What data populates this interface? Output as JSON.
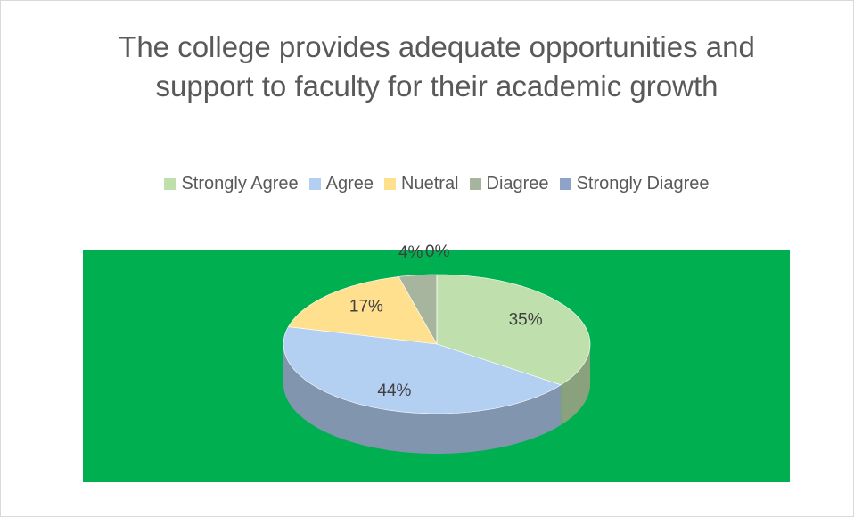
{
  "chart_data": {
    "type": "pie3d",
    "title": "The college provides adequate opportunities and support to faculty for their academic growth",
    "categories": [
      "Strongly Agree",
      "Agree",
      "Nuetral",
      "Diagree",
      "Strongly Diagree"
    ],
    "values": [
      35,
      44,
      17,
      4,
      0
    ],
    "value_labels": [
      "35%",
      "44%",
      "17%",
      "4%",
      "0%"
    ],
    "colors": [
      "#bfe0ad",
      "#b3cff2",
      "#ffe08f",
      "#a7b59e",
      "#8fa3c9"
    ],
    "legend": "top"
  }
}
